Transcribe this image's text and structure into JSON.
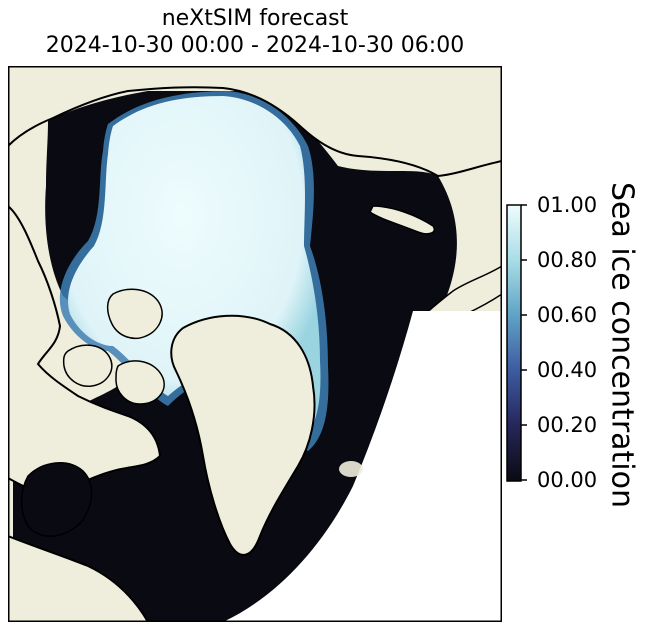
{
  "title": {
    "line1": "neXtSIM forecast",
    "line2": "2024-10-30 00:00 - 2024-10-30 06:00"
  },
  "colorbar": {
    "label": "Sea ice concentration",
    "ticks": [
      "01.00",
      "00.80",
      "00.60",
      "00.40",
      "00.20",
      "00.00"
    ],
    "colors": [
      "#0a0a12",
      "#26265a",
      "#3d5ba0",
      "#5fa3c6",
      "#a9dde6",
      "#eefcfd"
    ]
  },
  "map": {
    "land_color": "#efeedd",
    "ocean_color": "#0a0a12",
    "ice_color": "#e6f8fc",
    "coastline_color": "#000000"
  }
}
